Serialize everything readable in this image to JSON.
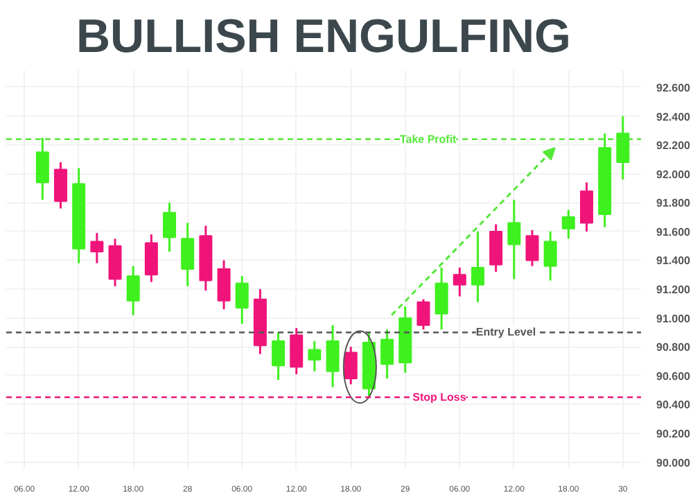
{
  "chart_data": {
    "type": "candlestick",
    "title": "BULLISH ENGULFING",
    "categories": [
      "06.00",
      null,
      null,
      "12.00",
      null,
      null,
      "18.00",
      null,
      null,
      "28",
      null,
      null,
      "06.00",
      null,
      null,
      "12.00",
      null,
      null,
      "18.00",
      null,
      null,
      "29",
      null,
      null,
      "06.00",
      null,
      null,
      "12.00",
      null,
      null,
      "18.00",
      null,
      null,
      "30"
    ],
    "ohlc": [
      null,
      [
        91.94,
        92.25,
        91.82,
        92.15
      ],
      [
        92.03,
        92.08,
        91.76,
        91.81
      ],
      [
        91.48,
        92.04,
        91.38,
        91.93
      ],
      [
        91.53,
        91.59,
        91.38,
        91.46
      ],
      [
        91.5,
        91.55,
        91.22,
        91.27
      ],
      [
        91.12,
        91.36,
        91.02,
        91.29
      ],
      [
        91.52,
        91.58,
        91.25,
        91.3
      ],
      [
        91.56,
        91.8,
        91.46,
        91.73
      ],
      [
        91.34,
        91.66,
        91.22,
        91.55
      ],
      [
        91.57,
        91.64,
        91.19,
        91.26
      ],
      [
        91.34,
        91.4,
        91.06,
        91.12
      ],
      [
        91.07,
        91.29,
        90.96,
        91.24
      ],
      [
        91.13,
        91.2,
        90.75,
        90.81
      ],
      [
        90.67,
        90.9,
        90.57,
        90.84
      ],
      [
        90.88,
        90.93,
        90.61,
        90.66
      ],
      [
        90.71,
        90.84,
        90.63,
        90.78
      ],
      [
        90.63,
        90.95,
        90.52,
        90.84
      ],
      [
        90.76,
        90.8,
        90.54,
        90.58
      ],
      [
        90.51,
        90.9,
        90.45,
        90.83
      ],
      [
        90.68,
        90.92,
        90.58,
        90.85
      ],
      [
        90.69,
        91.08,
        90.62,
        91.0
      ],
      [
        91.11,
        91.13,
        90.92,
        90.95
      ],
      [
        91.03,
        91.35,
        90.92,
        91.24
      ],
      [
        91.3,
        91.35,
        91.15,
        91.23
      ],
      [
        91.23,
        91.6,
        91.11,
        91.35
      ],
      [
        91.6,
        91.65,
        91.32,
        91.37
      ],
      [
        91.51,
        91.82,
        91.27,
        91.66
      ],
      [
        91.57,
        91.61,
        91.36,
        91.4
      ],
      [
        91.36,
        91.6,
        91.26,
        91.53
      ],
      [
        91.62,
        91.75,
        91.55,
        91.7
      ],
      [
        91.88,
        91.94,
        91.6,
        91.66
      ],
      [
        91.72,
        92.28,
        91.63,
        92.18
      ],
      [
        92.08,
        92.4,
        91.96,
        92.28
      ]
    ],
    "colors": [
      null,
      "#3ef01e",
      "#f0147a",
      "#3ef01e",
      "#f0147a",
      "#f0147a",
      "#3ef01e",
      "#f0147a",
      "#3ef01e",
      "#3ef01e",
      "#f0147a",
      "#f0147a",
      "#3ef01e",
      "#f0147a",
      "#3ef01e",
      "#f0147a",
      "#3ef01e",
      "#3ef01e",
      "#f0147a",
      "#3ef01e",
      "#3ef01e",
      "#3ef01e",
      "#f0147a",
      "#3ef01e",
      "#f0147a",
      "#3ef01e",
      "#f0147a",
      "#3ef01e",
      "#f0147a",
      "#3ef01e",
      "#3ef01e",
      "#f0147a",
      "#3ef01e",
      "#3ef01e"
    ],
    "ylim": [
      89.95,
      92.72
    ],
    "yticks": [
      {
        "value": 90.0,
        "label": "90.000"
      },
      {
        "value": 90.2,
        "label": "90.200"
      },
      {
        "value": 90.4,
        "label": "90.400"
      },
      {
        "value": 90.6,
        "label": "90.600"
      },
      {
        "value": 90.8,
        "label": "90.800"
      },
      {
        "value": 91.0,
        "label": "91.000"
      },
      {
        "value": 91.2,
        "label": "91.200"
      },
      {
        "value": 91.4,
        "label": "91.400"
      },
      {
        "value": 91.6,
        "label": "91.600"
      },
      {
        "value": 91.8,
        "label": "91.800"
      },
      {
        "value": 92.0,
        "label": "92.000"
      },
      {
        "value": 92.2,
        "label": "92.200"
      },
      {
        "value": 92.4,
        "label": "92.400"
      },
      {
        "value": 92.6,
        "label": "92.600"
      }
    ],
    "ref_lines": [
      {
        "axis": "y",
        "value": 92.24,
        "label": "Take Profit",
        "color": "#55e83a",
        "line_style": "dashed"
      },
      {
        "axis": "y",
        "value": 90.9,
        "label": "Entry Level",
        "color": "#555555",
        "line_style": "dashed"
      },
      {
        "axis": "y",
        "value": 90.45,
        "label": "Stop Loss",
        "color": "#f0147a",
        "line_style": "dashed"
      }
    ],
    "grid": true
  }
}
